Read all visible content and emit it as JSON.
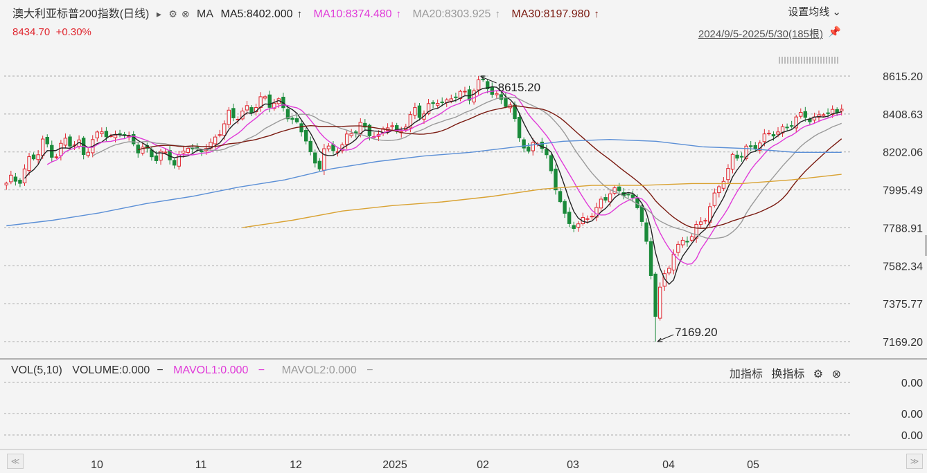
{
  "header": {
    "title": "澳大利亚标普200指数(日线)",
    "ma_label": "MA",
    "ma5": "MA5:8402.000",
    "ma10": "MA10:8374.480",
    "ma20": "MA20:8303.925",
    "ma30": "MA30:8197.980",
    "up_arrow": "↑",
    "price": "8434.70",
    "change": "+0.30%",
    "settings": "设置均线",
    "range": "2024/9/5-2025/5/30(185根)"
  },
  "colors": {
    "up": "#e0262f",
    "down": "#1a8a3a",
    "ma5": "#222222",
    "ma10": "#e03ad8",
    "ma20": "#9a9a9a",
    "ma30": "#7a1a10",
    "ma120": "#5b8fd6",
    "ma250": "#d9a232"
  },
  "volume_panel": {
    "vol": "VOL(5,10)",
    "volume": "VOLUME:0.000",
    "mavol1": "MAVOL1:0.000",
    "mavol2": "MAVOL2:0.000",
    "dash": "−",
    "add": "加指标",
    "switch": "换指标",
    "y_labels": [
      "0.00",
      "0.00",
      "0.00"
    ]
  },
  "chart_data": {
    "type": "candlestick",
    "y_ticks": [
      "8615.20",
      "8408.63",
      "8202.06",
      "7995.49",
      "7788.91",
      "7582.34",
      "7375.77",
      "7169.20"
    ],
    "ylim": [
      7169.2,
      8615.2
    ],
    "x_ticks": [
      "10",
      "11",
      "12",
      "2025",
      "02",
      "03",
      "04",
      "05"
    ],
    "annotations": [
      {
        "text": "8615.20",
        "value": 8615.2,
        "at": "high"
      },
      {
        "text": "7169.20",
        "value": 7169.2,
        "at": "low"
      }
    ],
    "candle_count": 185,
    "close_path": [
      8020,
      8060,
      8040,
      8110,
      8180,
      8160,
      8250,
      8240,
      8170,
      8230,
      8280,
      8210,
      8260,
      8200,
      8240,
      8290,
      8320,
      8260,
      8300,
      8330,
      8270,
      8250,
      8200,
      8230,
      8210,
      8160,
      8190,
      8180,
      8130,
      8200,
      8250,
      8200,
      8190,
      8230,
      8250,
      8300,
      8330,
      8400,
      8380,
      8420,
      8450,
      8420,
      8470,
      8490,
      8460,
      8500,
      8450,
      8380,
      8350,
      8330,
      8280,
      8150,
      8100,
      8230,
      8200,
      8230,
      8250,
      8300,
      8300,
      8350,
      8320,
      8310,
      8280,
      8330,
      8350,
      8300,
      8340,
      8390,
      8420,
      8380,
      8450,
      8470,
      8500,
      8450,
      8480,
      8520,
      8540,
      8500,
      8560,
      8580,
      8560,
      8520,
      8510,
      8470,
      8440,
      8300,
      8250,
      8200,
      8280,
      8230,
      8150,
      8060,
      7960,
      7850,
      7800,
      7780,
      7830,
      7870,
      7880,
      7940,
      7950,
      7980,
      8000,
      7990,
      7950,
      7900,
      7800,
      7600,
      7330,
      7520,
      7520,
      7650,
      7700,
      7720,
      7760,
      7800,
      7800,
      7900,
      7980,
      8050,
      8100,
      8170,
      8160,
      8230,
      8230,
      8250,
      8270,
      8290,
      8310,
      8330,
      8350,
      8360,
      8390,
      8400,
      8380,
      8400,
      8420,
      8400,
      8410,
      8435
    ],
    "ma_series": [
      {
        "name": "MA5",
        "color_key": "ma5"
      },
      {
        "name": "MA10",
        "color_key": "ma10"
      },
      {
        "name": "MA20",
        "color_key": "ma20"
      },
      {
        "name": "MA30",
        "color_key": "ma30"
      },
      {
        "name": "",
        "color_key": "ma120",
        "values": [
          7800,
          7830,
          7870,
          7920,
          7960,
          8010,
          8050,
          8110,
          8150,
          8180,
          8200,
          8230,
          8260,
          8270,
          8260,
          8230,
          8220,
          8200,
          8200
        ]
      },
      {
        "name": "",
        "color_key": "ma250",
        "values": [
          7790,
          7830,
          7880,
          7910,
          7930,
          7960,
          8000,
          8020,
          8020,
          8030,
          8030,
          8050,
          8080
        ]
      }
    ]
  },
  "footer": {
    "prev": "≪",
    "next": "≫"
  }
}
